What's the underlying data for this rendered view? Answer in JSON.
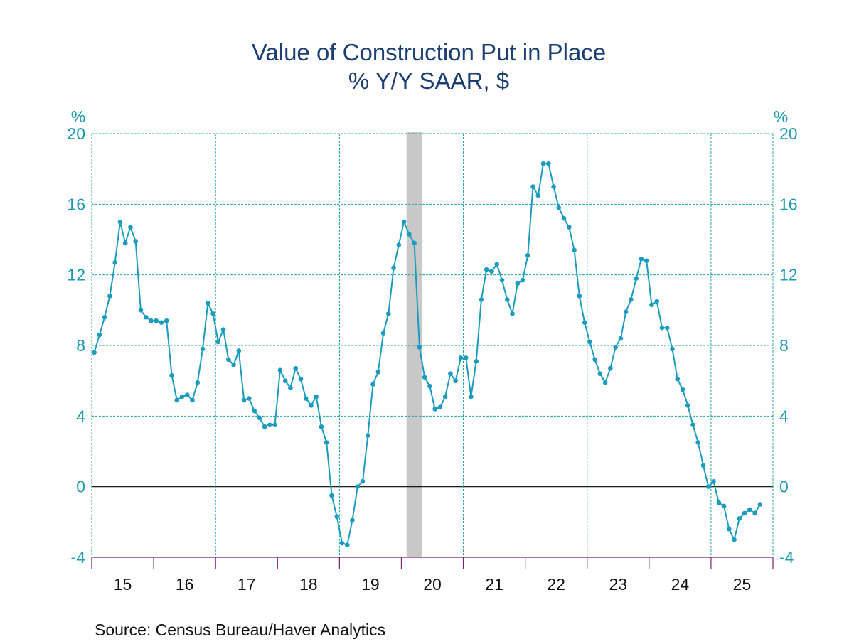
{
  "chart_data": {
    "type": "line",
    "title": "Value of Construction Put in Place",
    "subtitle": "% Y/Y   SAAR, $",
    "ylabel_left": "%",
    "ylabel_right": "%",
    "ylim": [
      -4,
      20
    ],
    "yticks": [
      -4,
      0,
      4,
      8,
      12,
      16,
      20
    ],
    "xtick_labels": [
      "15",
      "16",
      "17",
      "18",
      "19",
      "20",
      "21",
      "22",
      "23",
      "24",
      "25"
    ],
    "x_start": "2015-01",
    "frequency": "monthly",
    "grid": true,
    "recession_shading": [
      "2020-02",
      "2020-04"
    ],
    "source": "Source:  Census Bureau/Haver Analytics",
    "colors": {
      "line": "#1a9bbf",
      "grid": "#1aa59a",
      "title": "#1b3f73",
      "tick": "#1a9bb0",
      "recession": "#c8c8c8",
      "axis": "#7a1f6e"
    },
    "values": [
      7.6,
      8.6,
      9.6,
      10.8,
      12.7,
      15.0,
      13.8,
      14.7,
      13.9,
      10.0,
      9.6,
      9.4,
      9.4,
      9.3,
      9.4,
      6.3,
      4.9,
      5.1,
      5.2,
      4.9,
      5.9,
      7.8,
      10.4,
      9.8,
      8.2,
      8.9,
      7.2,
      6.9,
      7.7,
      4.9,
      5.0,
      4.3,
      3.9,
      3.4,
      3.5,
      3.5,
      6.6,
      6.0,
      5.6,
      6.7,
      6.1,
      5.0,
      4.6,
      5.1,
      3.4,
      2.5,
      -0.5,
      -1.7,
      -3.2,
      -3.3,
      -1.9,
      0.0,
      0.3,
      2.9,
      5.8,
      6.5,
      8.7,
      9.8,
      12.4,
      13.7,
      15.0,
      14.3,
      13.8,
      7.9,
      6.2,
      5.7,
      4.4,
      4.5,
      5.1,
      6.4,
      6.0,
      7.3,
      7.3,
      5.1,
      7.1,
      10.6,
      12.3,
      12.2,
      12.6,
      11.7,
      10.6,
      9.8,
      11.5,
      11.7,
      13.1,
      17.0,
      16.5,
      18.3,
      18.3,
      17.0,
      15.8,
      15.2,
      14.7,
      13.4,
      10.8,
      9.3,
      8.2,
      7.2,
      6.4,
      5.9,
      6.7,
      7.9,
      8.4,
      9.9,
      10.6,
      11.8,
      12.9,
      12.8,
      10.3,
      10.5,
      9.0,
      9.0,
      7.8,
      6.1,
      5.5,
      4.6,
      3.5,
      2.5,
      1.2,
      0.0,
      0.3,
      -0.9,
      -1.1,
      -2.4,
      -3.0,
      -1.8,
      -1.5,
      -1.3,
      -1.5,
      -1.0
    ]
  }
}
